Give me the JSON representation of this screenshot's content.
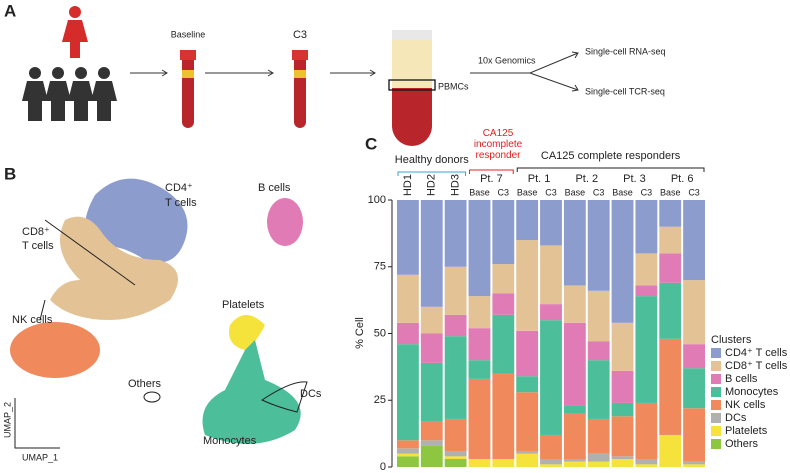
{
  "panels": {
    "a": "A",
    "b": "B",
    "c": "C"
  },
  "workflow": {
    "baseline": "Baseline",
    "c3": "C3",
    "pbmcs": "PBMCs",
    "platform": "10x Genomics",
    "rna": "Single-cell RNA-seq",
    "tcr": "Single-cell TCR-seq"
  },
  "umap": {
    "cd4": "CD4⁺",
    "cd4b": "T cells",
    "cd8": "CD8⁺",
    "cd8b": "T cells",
    "b": "B cells",
    "nk": "NK cells",
    "platelets": "Platelets",
    "others": "Others",
    "dcs": "DCs",
    "mono": "Monocytes",
    "x_label": "UMAP_1",
    "y_label": "UMAP_2"
  },
  "chart_data": {
    "type": "stacked_bar",
    "y_label": "% Cell",
    "legend_title": "Clusters",
    "legend": "right",
    "ylim": [
      0,
      100
    ],
    "yticks": [
      0,
      25,
      50,
      75,
      100
    ],
    "groups": [
      {
        "label": "Healthy donors",
        "color": "#3aa0d8",
        "members": [
          {
            "bars": [
              "HD1",
              "HD2",
              "HD3"
            ]
          }
        ]
      },
      {
        "label": "CA125 incomplete responder",
        "color": "#e02020",
        "members": [
          {
            "name": "Pt. 7",
            "bars": [
              "Base",
              "C3"
            ]
          }
        ]
      },
      {
        "label": "CA125 complete responders",
        "color": "#222222",
        "members": [
          {
            "name": "Pt. 1",
            "bars": [
              "Base",
              "C3"
            ]
          },
          {
            "name": "Pt. 2",
            "bars": [
              "Base",
              "C3"
            ]
          },
          {
            "name": "Pt. 3",
            "bars": [
              "Base",
              "C3"
            ]
          },
          {
            "name": "Pt. 6",
            "bars": [
              "Base",
              "C3"
            ]
          }
        ]
      }
    ],
    "series": [
      {
        "name": "CD4⁺ T cells",
        "color": "#8c9ccd",
        "values": [
          28,
          40,
          25,
          36,
          24,
          15,
          17,
          32,
          34,
          46,
          20,
          10,
          30
        ]
      },
      {
        "name": "CD8⁺ T cells",
        "color": "#e3c396",
        "values": [
          18,
          10,
          18,
          12,
          11,
          34,
          22,
          14,
          19,
          18,
          12,
          10,
          24
        ]
      },
      {
        "name": "B cells",
        "color": "#e07bb5",
        "values": [
          8,
          11,
          8,
          12,
          8,
          17,
          6,
          31,
          7,
          12,
          4,
          11,
          9
        ]
      },
      {
        "name": "Monocytes",
        "color": "#4cbf9a",
        "values": [
          36,
          22,
          31,
          7,
          22,
          6,
          43,
          3,
          22,
          5,
          40,
          21,
          15
        ]
      },
      {
        "name": "NK cells",
        "color": "#f08a5d",
        "values": [
          3,
          7,
          12,
          30,
          32,
          22,
          9,
          17,
          13,
          15,
          21,
          36,
          20
        ]
      },
      {
        "name": "DCs",
        "color": "#b0b0b0",
        "values": [
          2,
          2,
          2,
          0,
          0,
          1,
          2,
          1,
          3,
          1,
          2,
          0,
          1
        ]
      },
      {
        "name": "Platelets",
        "color": "#f5e23a",
        "values": [
          1,
          0,
          1,
          3,
          3,
          5,
          1,
          2,
          2,
          3,
          1,
          12,
          1
        ]
      },
      {
        "name": "Others",
        "color": "#8dc63f",
        "values": [
          4,
          8,
          3,
          0,
          0,
          0,
          0,
          0,
          0,
          0,
          0,
          0,
          0
        ]
      }
    ]
  }
}
